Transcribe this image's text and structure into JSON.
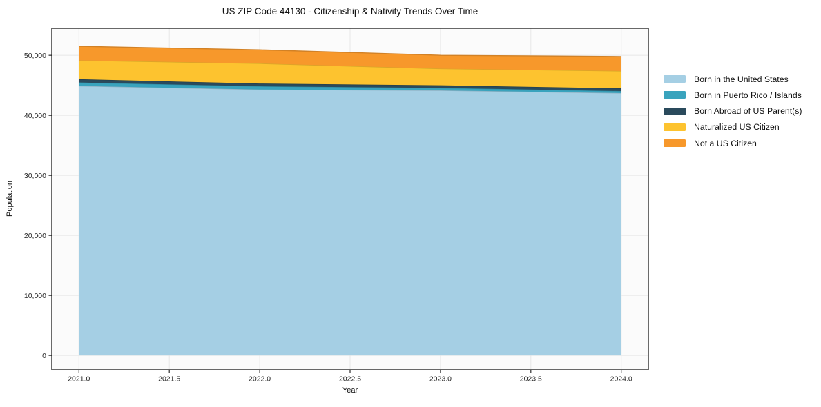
{
  "title": "US ZIP Code 44130 - Citizenship & Nativity Trends Over Time",
  "chart_data": {
    "type": "area",
    "stacked": true,
    "title": "US ZIP Code 44130 - Citizenship & Nativity Trends Over Time",
    "xlabel": "Year",
    "ylabel": "Population",
    "x": [
      2021,
      2022,
      2023,
      2024
    ],
    "series": [
      {
        "name": "Born in the United States",
        "color": "#a5cfe4",
        "values": [
          44900,
          44300,
          44150,
          43700
        ]
      },
      {
        "name": "Born in Puerto Rico / Islands",
        "color": "#39a3bd",
        "values": [
          570,
          540,
          420,
          340
        ]
      },
      {
        "name": "Born Abroad of US Parent(s)",
        "color": "#2a4a5c",
        "values": [
          540,
          450,
          430,
          460
        ]
      },
      {
        "name": "Naturalized US Citizen",
        "color": "#fdc32f",
        "values": [
          3150,
          3350,
          2780,
          2880
        ]
      },
      {
        "name": "Not a US Citizen",
        "color": "#f7982b",
        "values": [
          2350,
          2270,
          2220,
          2420
        ]
      }
    ],
    "totals": [
      51510,
      50910,
      50000,
      49800
    ],
    "xlim": [
      2020.85,
      2024.15
    ],
    "ylim": [
      -2400,
      54500
    ],
    "xticks": [
      2021.0,
      2021.5,
      2022.0,
      2022.5,
      2023.0,
      2023.5,
      2024.0
    ],
    "xtick_labels": [
      "2021.0",
      "2021.5",
      "2022.0",
      "2022.5",
      "2023.0",
      "2023.5",
      "2024.0"
    ],
    "yticks": [
      0,
      10000,
      20000,
      30000,
      40000,
      50000
    ],
    "ytick_labels": [
      "0",
      "10,000",
      "20,000",
      "30,000",
      "40,000",
      "50,000"
    ],
    "grid": true,
    "legend_position": "right-outside",
    "colors": {
      "plot_background": "#fbfbfb",
      "grid": "#e7e7e7",
      "spine": "#1a1a1a",
      "tick_text": "#262626"
    }
  }
}
